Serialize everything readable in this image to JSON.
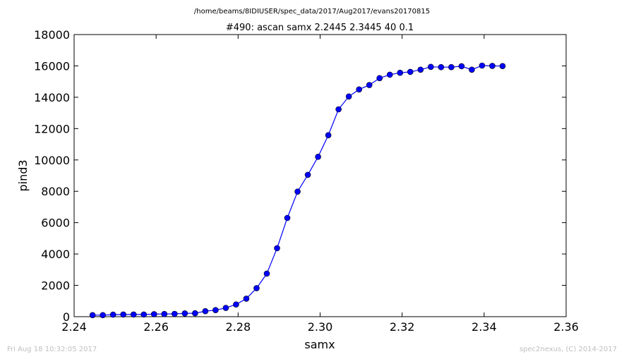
{
  "chart_data": {
    "type": "line",
    "suptitle": "/home/beams/8IDIUSER/spec_data/2017/Aug2017/evans20170815",
    "title": "#490: ascan  samx 2.2445 2.3445  40 0.1",
    "xlabel": "samx",
    "ylabel": "pind3",
    "xlim": [
      2.24,
      2.36
    ],
    "ylim": [
      0,
      18000
    ],
    "xticks": [
      "2.24",
      "2.26",
      "2.28",
      "2.30",
      "2.32",
      "2.34",
      "2.36"
    ],
    "yticks": [
      "0",
      "2000",
      "4000",
      "6000",
      "8000",
      "10000",
      "12000",
      "14000",
      "16000",
      "18000"
    ],
    "grid": false,
    "series_color": "#0000ff",
    "x": [
      2.2445,
      2.247,
      2.2495,
      2.252,
      2.2545,
      2.257,
      2.2595,
      2.262,
      2.2645,
      2.267,
      2.2695,
      2.272,
      2.2745,
      2.277,
      2.2795,
      2.282,
      2.2845,
      2.287,
      2.2895,
      2.292,
      2.2945,
      2.297,
      2.2995,
      2.302,
      2.3045,
      2.307,
      2.3095,
      2.312,
      2.3145,
      2.317,
      2.3195,
      2.322,
      2.3245,
      2.327,
      2.3295,
      2.332,
      2.3345,
      2.337,
      2.3395,
      2.342,
      2.3445
    ],
    "y": [
      100,
      100,
      130,
      140,
      140,
      140,
      160,
      170,
      180,
      210,
      220,
      350,
      420,
      560,
      780,
      1150,
      1820,
      2750,
      4370,
      6300,
      7980,
      9050,
      10200,
      11580,
      13230,
      14050,
      14500,
      14780,
      15220,
      15440,
      15560,
      15620,
      15760,
      15940,
      15920,
      15920,
      15980,
      15760,
      16020,
      16000,
      15990
    ]
  },
  "footer": {
    "timestamp": "Fri Aug 18 10:32:05 2017",
    "credit": "spec2nexus, (C) 2014-2017"
  }
}
